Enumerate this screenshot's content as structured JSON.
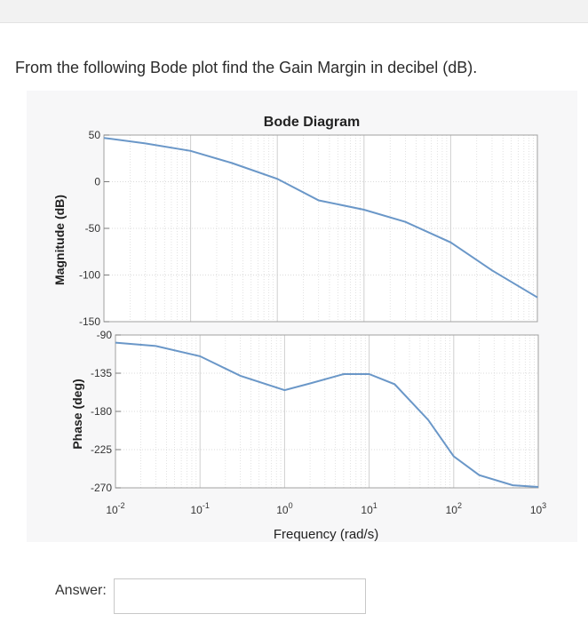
{
  "question": "From the following Bode plot find the Gain Margin in decibel (dB).",
  "answer": {
    "label": "Answer:",
    "value": ""
  },
  "colors": {
    "curve": "#6a97c8",
    "grid": "#cfcfcf",
    "axis": "#7a7a7a"
  },
  "chart_data": {
    "type": "line",
    "title": "Bode Diagram",
    "xlabel": "Frequency (rad/s)",
    "xscale": "log",
    "xlim": [
      0.01,
      1000
    ],
    "xticks": [
      {
        "base": "10",
        "exp": "-2"
      },
      {
        "base": "10",
        "exp": "-1"
      },
      {
        "base": "10",
        "exp": "0"
      },
      {
        "base": "10",
        "exp": "1"
      },
      {
        "base": "10",
        "exp": "2"
      },
      {
        "base": "10",
        "exp": "3"
      }
    ],
    "panels": [
      {
        "name": "magnitude",
        "ylabel": "Magnitude (dB)",
        "ylim": [
          -150,
          50
        ],
        "yticks": [
          "50",
          "0",
          "-50",
          "-100",
          "-150"
        ],
        "series": [
          {
            "x": [
              0.01,
              0.03,
              0.1,
              0.3,
              1,
              3,
              10,
              30,
              100,
              300,
              1000
            ],
            "y": [
              47,
              41,
              33,
              20,
              3,
              -20,
              -30,
              -43,
              -65,
              -95,
              -124
            ]
          }
        ]
      },
      {
        "name": "phase",
        "ylabel": "Phase (deg)",
        "ylim": [
          -270,
          -90
        ],
        "yticks": [
          "-90",
          "-135",
          "-180",
          "-225",
          "-270"
        ],
        "series": [
          {
            "x": [
              0.01,
              0.03,
              0.1,
              0.3,
              1,
              2,
              5,
              10,
              20,
              50,
              100,
              200,
              500,
              1000
            ],
            "y": [
              -99,
              -103,
              -115,
              -138,
              -155,
              -147,
              -136,
              -136,
              -148,
              -190,
              -233,
              -255,
              -267,
              -269
            ]
          }
        ]
      }
    ],
    "grid": true
  }
}
